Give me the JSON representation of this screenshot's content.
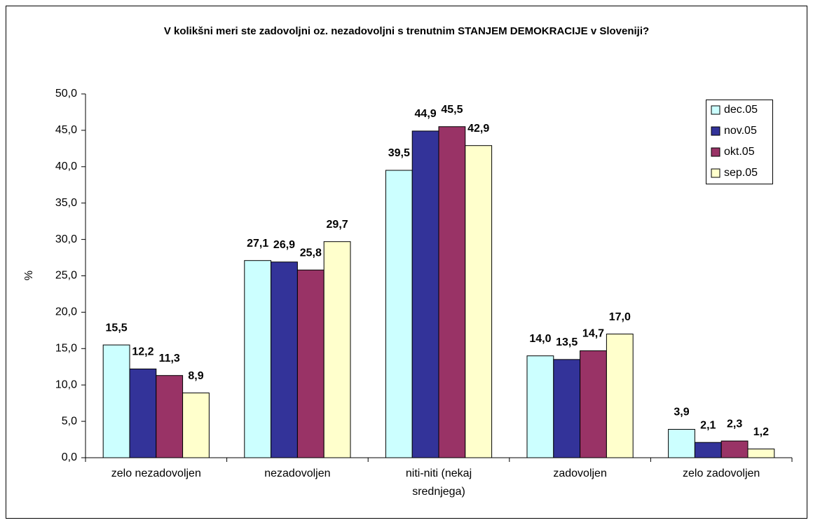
{
  "chart_data": {
    "type": "bar",
    "title": "V kolikšni meri ste zadovoljni oz. nezadovoljni s trenutnim STANJEM DEMOKRACIJE v Sloveniji?",
    "y_label": "%",
    "categories": [
      "zelo nezadovoljen",
      "nezadovoljen",
      "niti-niti (nekaj srednjega)",
      "zadovoljen",
      "zelo zadovoljen"
    ],
    "series": [
      {
        "name": "dec.05",
        "color": "#CCFFFF",
        "values": [
          15.5,
          27.1,
          39.5,
          14.0,
          3.9
        ],
        "value_labels": [
          "15,5",
          "27,1",
          "39,5",
          "14,0",
          "3,9"
        ]
      },
      {
        "name": "nov.05",
        "color": "#333399",
        "values": [
          12.2,
          26.9,
          44.9,
          13.5,
          2.1
        ],
        "value_labels": [
          "12,2",
          "26,9",
          "44,9",
          "13,5",
          "2,1"
        ]
      },
      {
        "name": "okt.05",
        "color": "#993366",
        "values": [
          11.3,
          25.8,
          45.5,
          14.7,
          2.3
        ],
        "value_labels": [
          "11,3",
          "25,8",
          "45,5",
          "14,7",
          "2,3"
        ]
      },
      {
        "name": "sep.05",
        "color": "#FFFFCC",
        "values": [
          8.9,
          29.7,
          42.9,
          17.0,
          1.2
        ],
        "value_labels": [
          "8,9",
          "29,7",
          "42,9",
          "17,0",
          "1,2"
        ]
      }
    ],
    "ylim": [
      0,
      50
    ],
    "yticks": [
      {
        "value": 0,
        "label": "0,0"
      },
      {
        "value": 5,
        "label": "5,0"
      },
      {
        "value": 10,
        "label": "10,0"
      },
      {
        "value": 15,
        "label": "15,0"
      },
      {
        "value": 20,
        "label": "20,0"
      },
      {
        "value": 25,
        "label": "25,0"
      },
      {
        "value": 30,
        "label": "30,0"
      },
      {
        "value": 35,
        "label": "35,0"
      },
      {
        "value": 40,
        "label": "40,0"
      },
      {
        "value": 45,
        "label": "45,0"
      },
      {
        "value": 50,
        "label": "50,0"
      }
    ],
    "grid": false,
    "legend": "top-right"
  }
}
